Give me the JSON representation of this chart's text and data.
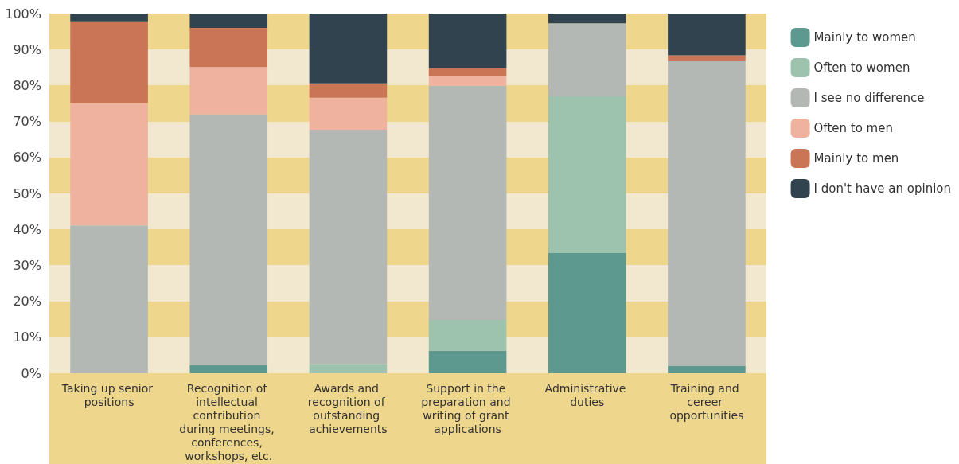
{
  "chart_data": {
    "type": "bar",
    "stacked": true,
    "categories": [
      "Taking up senior positions",
      "Recognition of intellectual contribution during meetings, conferences, workshops, etc.",
      "Awards and recognition of outstanding achievements",
      "Support in the preparation and writing of grant applications",
      "Administrative duties",
      "Training and cereer opportunities"
    ],
    "series": [
      {
        "name": "Mainly to women",
        "color": "#5e998f",
        "values": [
          0,
          2.2,
          0,
          6.3,
          33.4,
          2.1
        ]
      },
      {
        "name": "Often to women",
        "color": "#9dc3ae",
        "values": [
          0,
          0,
          2.6,
          8.5,
          43.6,
          0
        ]
      },
      {
        "name": "I see no difference",
        "color": "#b3b8b5",
        "values": [
          41.1,
          69.8,
          65.1,
          65.1,
          20.3,
          84.6
        ]
      },
      {
        "name": "Often to men",
        "color": "#efb29f",
        "values": [
          34.0,
          13.1,
          8.9,
          2.6,
          0,
          0
        ]
      },
      {
        "name": "Mainly to men",
        "color": "#cb7557",
        "values": [
          22.5,
          10.9,
          4.0,
          2.3,
          0,
          1.7
        ]
      },
      {
        "name": "I don't have an opinion",
        "color": "#324350",
        "values": [
          2.4,
          4.0,
          19.4,
          15.2,
          2.7,
          11.6
        ]
      }
    ],
    "ylim": [
      0,
      100
    ],
    "yticks": [
      {
        "value": 0,
        "label": "0%"
      },
      {
        "value": 10,
        "label": "10%"
      },
      {
        "value": 20,
        "label": "20%"
      },
      {
        "value": 30,
        "label": "30%"
      },
      {
        "value": 40,
        "label": "40%"
      },
      {
        "value": 50,
        "label": "50%"
      },
      {
        "value": 60,
        "label": "60%"
      },
      {
        "value": 70,
        "label": "70%"
      },
      {
        "value": 80,
        "label": "80%"
      },
      {
        "value": 90,
        "label": "90%"
      },
      {
        "value": 100,
        "label": "100%"
      }
    ],
    "legend": "top right"
  }
}
